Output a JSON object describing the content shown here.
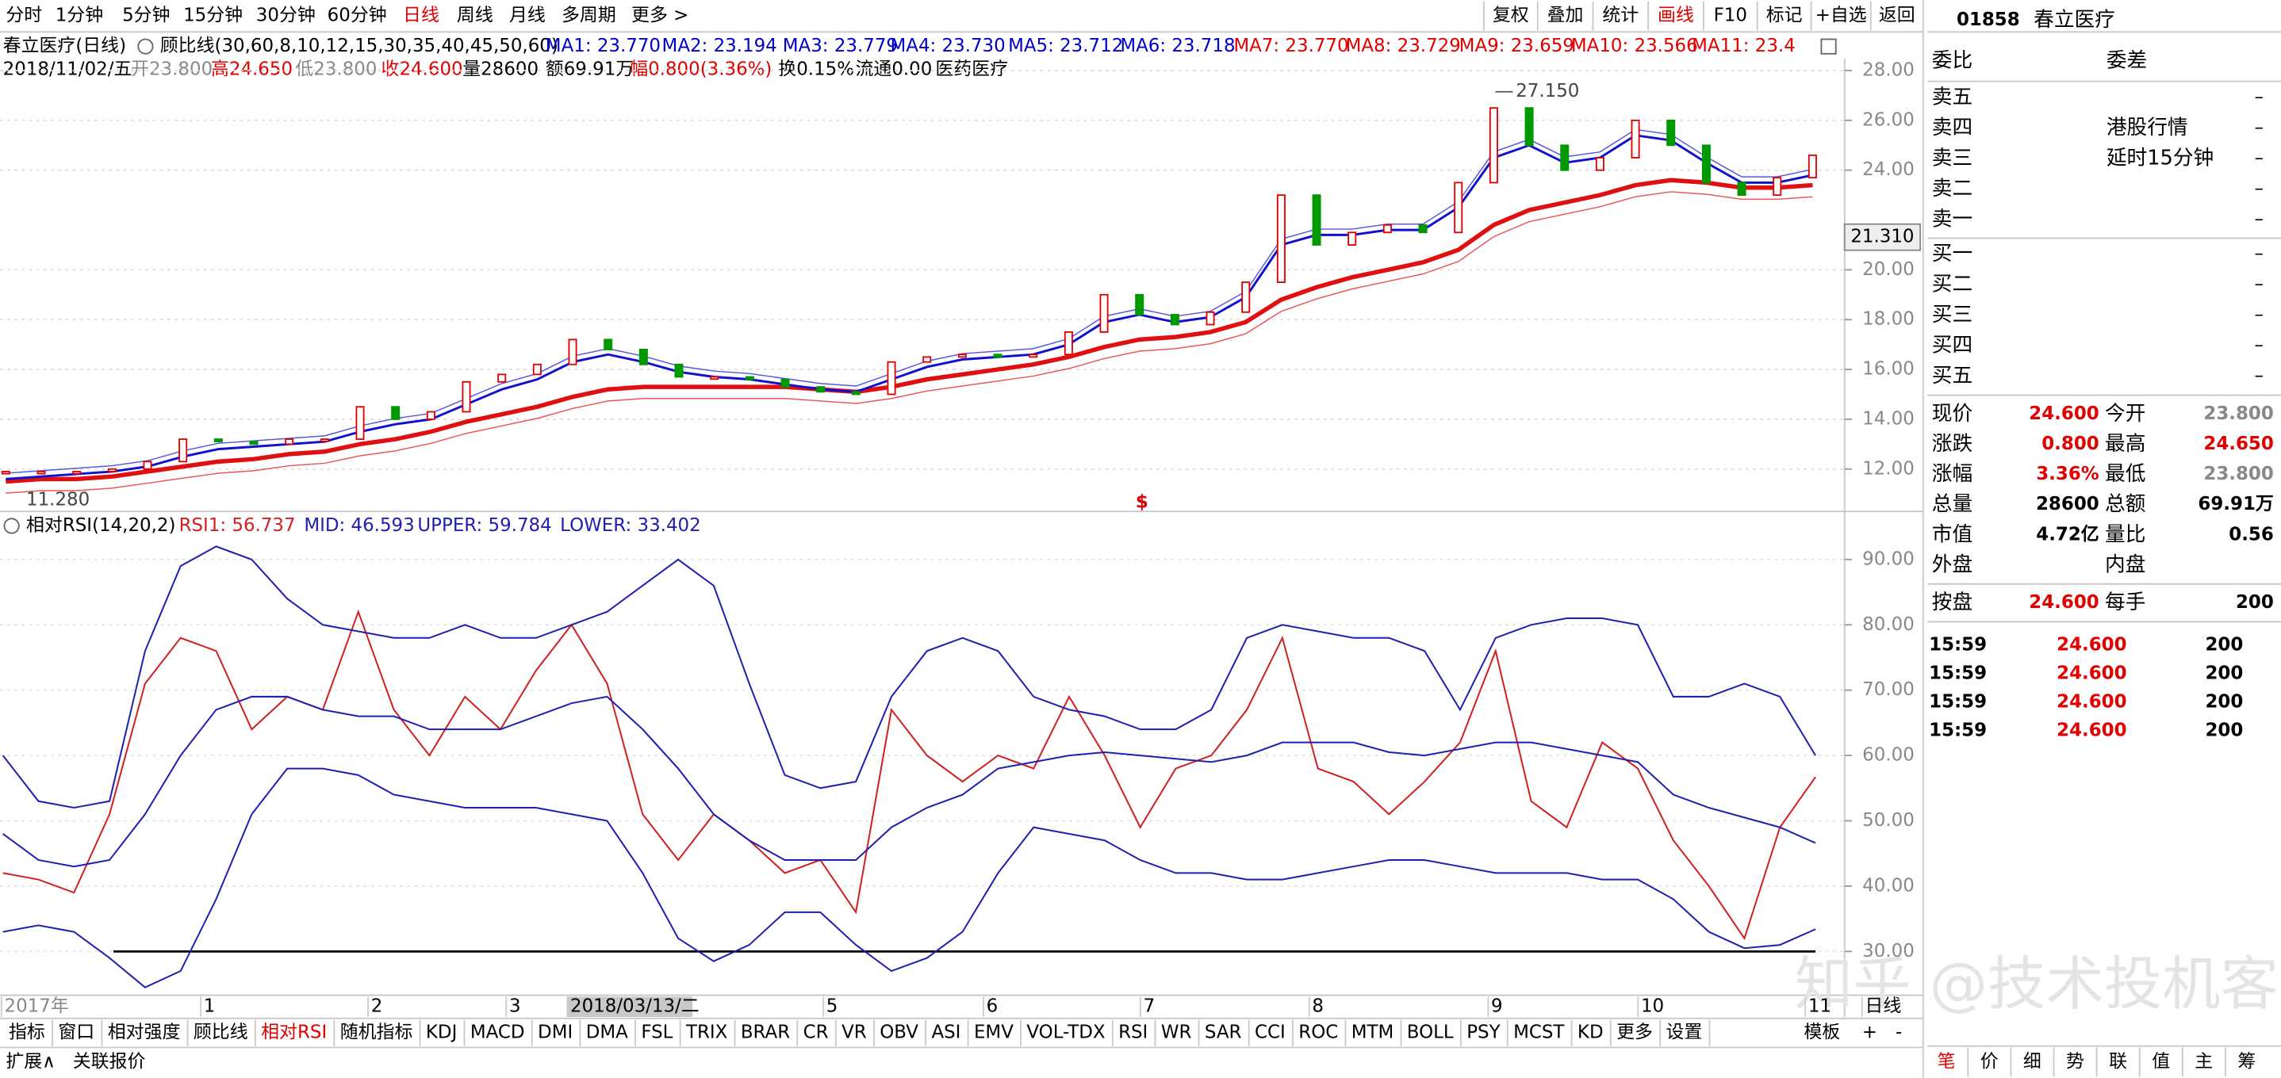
{
  "top_menu": [
    "分时",
    "1分钟",
    "5分钟",
    "15分钟",
    "30分钟",
    "60分钟",
    "日线",
    "周线",
    "月线",
    "多周期",
    "更多 >"
  ],
  "toolbar": [
    "复权",
    "叠加",
    "统计",
    "画线",
    "F10",
    "标记",
    "+自选",
    "返回"
  ],
  "info": {
    "name": "春立医疗(日线)",
    "indicator": "顾比线(30,60,8,10,12,15,30,35,40,45,50,60)",
    "ma": [
      "MA1: 23.770",
      "MA2: 23.194",
      "MA3: 23.779",
      "MA4: 23.730",
      "MA5: 23.712",
      "MA6: 23.718",
      "MA7: 23.770",
      "MA8: 23.729",
      "MA9: 23.659",
      "MA10: 23.566",
      "MA11: 23.4"
    ],
    "quote": [
      "2018/11/02/五",
      "开23.800",
      "高24.650",
      "低23.800",
      "收24.600",
      "量28600",
      "额69.91万",
      "幅0.800(3.36%)",
      "换0.15%",
      "流通0.00",
      "医药医疗"
    ]
  },
  "price_chart": {
    "type": "candlestick",
    "ylim": [
      10.3,
      28.5
    ],
    "yticks": [
      {
        "value": 28,
        "label": "28.00"
      },
      {
        "value": 26,
        "label": "26.00"
      },
      {
        "value": 24,
        "label": "24.00"
      },
      {
        "value": 20,
        "label": "20.00"
      },
      {
        "value": 18,
        "label": "18.00"
      },
      {
        "value": 16,
        "label": "16.00"
      },
      {
        "value": 14,
        "label": "14.00"
      },
      {
        "value": 12,
        "label": "12.00"
      }
    ],
    "close": [
      11.9,
      11.9,
      11.9,
      12.0,
      12.3,
      13.2,
      13.1,
      13.0,
      13.2,
      13.2,
      14.5,
      14.0,
      14.3,
      15.5,
      15.8,
      16.2,
      17.2,
      16.8,
      16.2,
      15.7,
      15.7,
      15.6,
      15.3,
      15.1,
      15.0,
      16.3,
      16.5,
      16.6,
      16.5,
      16.6,
      17.5,
      19.0,
      18.2,
      17.8,
      18.3,
      19.5,
      23.0,
      21.0,
      21.5,
      21.8,
      21.5,
      23.5,
      26.5,
      25.0,
      24.0,
      24.5,
      26.0,
      25.0,
      23.5,
      23.0,
      23.7,
      24.6
    ],
    "series": [
      {
        "color": "#1010d0",
        "values": [
          11.6,
          11.7,
          11.8,
          11.9,
          12.1,
          12.5,
          12.8,
          12.9,
          13.0,
          13.1,
          13.5,
          13.8,
          14.0,
          14.6,
          15.2,
          15.6,
          16.3,
          16.6,
          16.3,
          15.9,
          15.7,
          15.6,
          15.4,
          15.2,
          15.1,
          15.6,
          16.1,
          16.4,
          16.5,
          16.6,
          17.0,
          17.9,
          18.2,
          17.9,
          18.1,
          18.9,
          21.0,
          21.4,
          21.4,
          21.6,
          21.6,
          22.5,
          24.5,
          25.0,
          24.3,
          24.5,
          25.4,
          25.2,
          24.3,
          23.5,
          23.5,
          23.8
        ]
      },
      {
        "color": "#e01010",
        "values": [
          11.5,
          11.6,
          11.6,
          11.7,
          11.9,
          12.1,
          12.3,
          12.4,
          12.6,
          12.7,
          13.0,
          13.2,
          13.5,
          13.9,
          14.2,
          14.5,
          14.9,
          15.2,
          15.3,
          15.3,
          15.3,
          15.3,
          15.3,
          15.2,
          15.1,
          15.3,
          15.6,
          15.8,
          16.0,
          16.2,
          16.5,
          16.9,
          17.2,
          17.3,
          17.5,
          17.9,
          18.8,
          19.3,
          19.7,
          20.0,
          20.3,
          20.8,
          21.8,
          22.4,
          22.7,
          23.0,
          23.4,
          23.6,
          23.5,
          23.3,
          23.3,
          23.4
        ]
      }
    ],
    "high_label": {
      "value": 27.15,
      "label": "27.150"
    },
    "low_label": {
      "value": 11.28,
      "label": "11.280"
    },
    "cursor_label": {
      "value": 21.31,
      "label": "21.310"
    },
    "marker": "$"
  },
  "rsi_chart": {
    "type": "line",
    "title": "相对RSI(14,20,2)",
    "legend": [
      "RSI1: 56.737",
      "MID: 46.593",
      "UPPER: 59.784",
      "LOWER: 33.402"
    ],
    "ylim": [
      23.3,
      96.7
    ],
    "yticks": [
      {
        "value": 90,
        "label": "90.00"
      },
      {
        "value": 80,
        "label": "80.00"
      },
      {
        "value": 70,
        "label": "70.00"
      },
      {
        "value": 60,
        "label": "60.00"
      },
      {
        "value": 50,
        "label": "50.00"
      },
      {
        "value": 40,
        "label": "40.00"
      },
      {
        "value": 30,
        "label": "30.00"
      }
    ],
    "hline": 30,
    "series": [
      {
        "color": "#d02020",
        "values": [
          42,
          41,
          39,
          51,
          71,
          78,
          76,
          64,
          69,
          67,
          82,
          67,
          60,
          69,
          64,
          73,
          80,
          71,
          51,
          44,
          51,
          47,
          42,
          44,
          36,
          67,
          60,
          56,
          60,
          58,
          69,
          60,
          49,
          58,
          60,
          67,
          78,
          58,
          56,
          51,
          56,
          62,
          76,
          53,
          49,
          62,
          58,
          47,
          40,
          32,
          49,
          56.7
        ]
      },
      {
        "color": "#2020b0",
        "values": [
          48,
          44,
          43,
          44,
          51,
          60,
          67,
          69,
          69,
          67,
          66,
          66,
          64,
          64,
          64,
          66,
          68,
          69,
          64,
          58,
          51,
          47,
          44,
          44,
          44,
          49,
          52,
          54,
          58,
          59,
          60,
          60.5,
          60,
          59.5,
          59,
          60,
          62,
          62,
          62,
          60.5,
          60,
          61,
          62,
          62,
          61,
          60,
          59,
          54,
          52,
          50.5,
          49,
          46.6
        ]
      },
      {
        "color": "#2020b0",
        "values": [
          60,
          53,
          52,
          53,
          76,
          89,
          92,
          90,
          84,
          80,
          79,
          78,
          78,
          80,
          78,
          78,
          80,
          82,
          86,
          90,
          86,
          71,
          57,
          55,
          56,
          69,
          76,
          78,
          76,
          69,
          67,
          66,
          64,
          64,
          67,
          78,
          80,
          79,
          78,
          78,
          76,
          67,
          78,
          80,
          81,
          81,
          80,
          69,
          69,
          71,
          69,
          60
        ]
      },
      {
        "color": "#2020b0",
        "values": [
          33,
          34,
          33,
          29,
          24.5,
          27,
          38,
          51,
          58,
          58,
          57,
          54,
          53,
          52,
          52,
          52,
          51,
          50,
          42,
          32,
          28.5,
          31,
          36,
          36,
          31,
          27,
          29,
          33,
          42,
          49,
          48,
          47,
          44,
          42,
          42,
          41,
          41,
          42,
          43,
          44,
          44,
          43,
          42,
          42,
          42,
          41,
          41,
          38,
          33,
          30.5,
          31,
          33.4
        ]
      }
    ]
  },
  "x_axis": [
    "2017年",
    "1",
    "2",
    "3",
    "2018/03/13/二",
    "5",
    "6",
    "7",
    "8",
    "9",
    "10",
    "11",
    "日线"
  ],
  "indicator_tabs": [
    "指标",
    "窗口",
    "相对强度",
    "顾比线",
    "相对RSI",
    "随机指标",
    "KDJ",
    "MACD",
    "DMI",
    "DMA",
    "FSL",
    "TRIX",
    "BRAR",
    "CR",
    "VR",
    "OBV",
    "ASI",
    "EMV",
    "VOL-TDX",
    "RSI",
    "WR",
    "SAR",
    "CCI",
    "ROC",
    "MTM",
    "BOLL",
    "PSY",
    "MCST",
    "KD",
    "更多",
    "设置"
  ],
  "tabs_right": [
    "模板",
    "+",
    "-"
  ],
  "bottom_row": [
    "扩展∧",
    "关联报价"
  ],
  "watermark": "知乎 @技术投机客",
  "side": {
    "code": "01858",
    "name": "春立医疗",
    "order_ratio": "委比",
    "order_diff": "委差",
    "sell": [
      "卖五",
      "卖四",
      "卖三",
      "卖二",
      "卖一"
    ],
    "buy": [
      "买一",
      "买二",
      "买三",
      "买四",
      "买五"
    ],
    "empty": "–",
    "notice": [
      "港股行情",
      "延时15分钟"
    ],
    "quote": [
      [
        "现价",
        "24.600",
        "今开",
        "23.800"
      ],
      [
        "涨跌",
        "0.800",
        "最高",
        "24.650"
      ],
      [
        "涨幅",
        "3.36%",
        "最低",
        "23.800"
      ],
      [
        "总量",
        "28600",
        "总额",
        "69.91万"
      ],
      [
        "市值",
        "4.72亿",
        "量比",
        "0.56"
      ],
      [
        "外盘",
        "",
        "内盘",
        ""
      ]
    ],
    "close_row": [
      "按盘",
      "24.600",
      "每手",
      "200"
    ],
    "ticks": [
      [
        "15:59",
        "24.600",
        "200"
      ],
      [
        "15:59",
        "24.600",
        "200"
      ],
      [
        "15:59",
        "24.600",
        "200"
      ],
      [
        "15:59",
        "24.600",
        "200"
      ]
    ],
    "tabs": [
      "笔",
      "价",
      "细",
      "势",
      "联",
      "值",
      "主",
      "筹"
    ]
  }
}
